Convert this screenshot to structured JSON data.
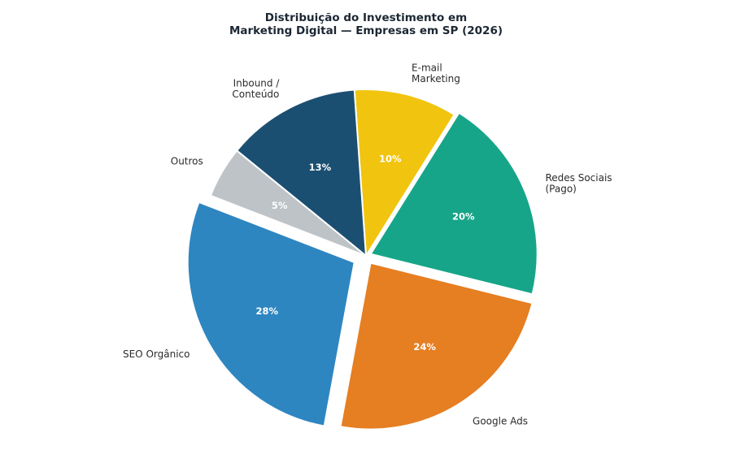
{
  "chart_data": {
    "type": "pie",
    "title": "Distribuição do Investimento em\nMarketing Digital — Empresas em SP (2026)",
    "slices": [
      {
        "name": "Redes Sociais\n(Pago)",
        "value": 20,
        "pct_label": "20%",
        "color": "#17a589",
        "explode": 0.03
      },
      {
        "name": "E-mail\nMarketing",
        "value": 10,
        "pct_label": "10%",
        "color": "#f1c40f",
        "explode": 0
      },
      {
        "name": "Inbound /\nConteúdo",
        "value": 13,
        "pct_label": "13%",
        "color": "#1b4f72",
        "explode": 0
      },
      {
        "name": "Outros",
        "value": 5,
        "pct_label": "5%",
        "color": "#bdc3c7",
        "explode": 0
      },
      {
        "name": "SEO Orgânico",
        "value": 28,
        "pct_label": "28%",
        "color": "#2e86c1",
        "explode": 0.08
      },
      {
        "name": "Google Ads",
        "value": 24,
        "pct_label": "24%",
        "color": "#e67e22",
        "explode": 0.05
      }
    ],
    "start_angle_deg": -14,
    "direction": "counterclockwise",
    "legend": "none"
  }
}
